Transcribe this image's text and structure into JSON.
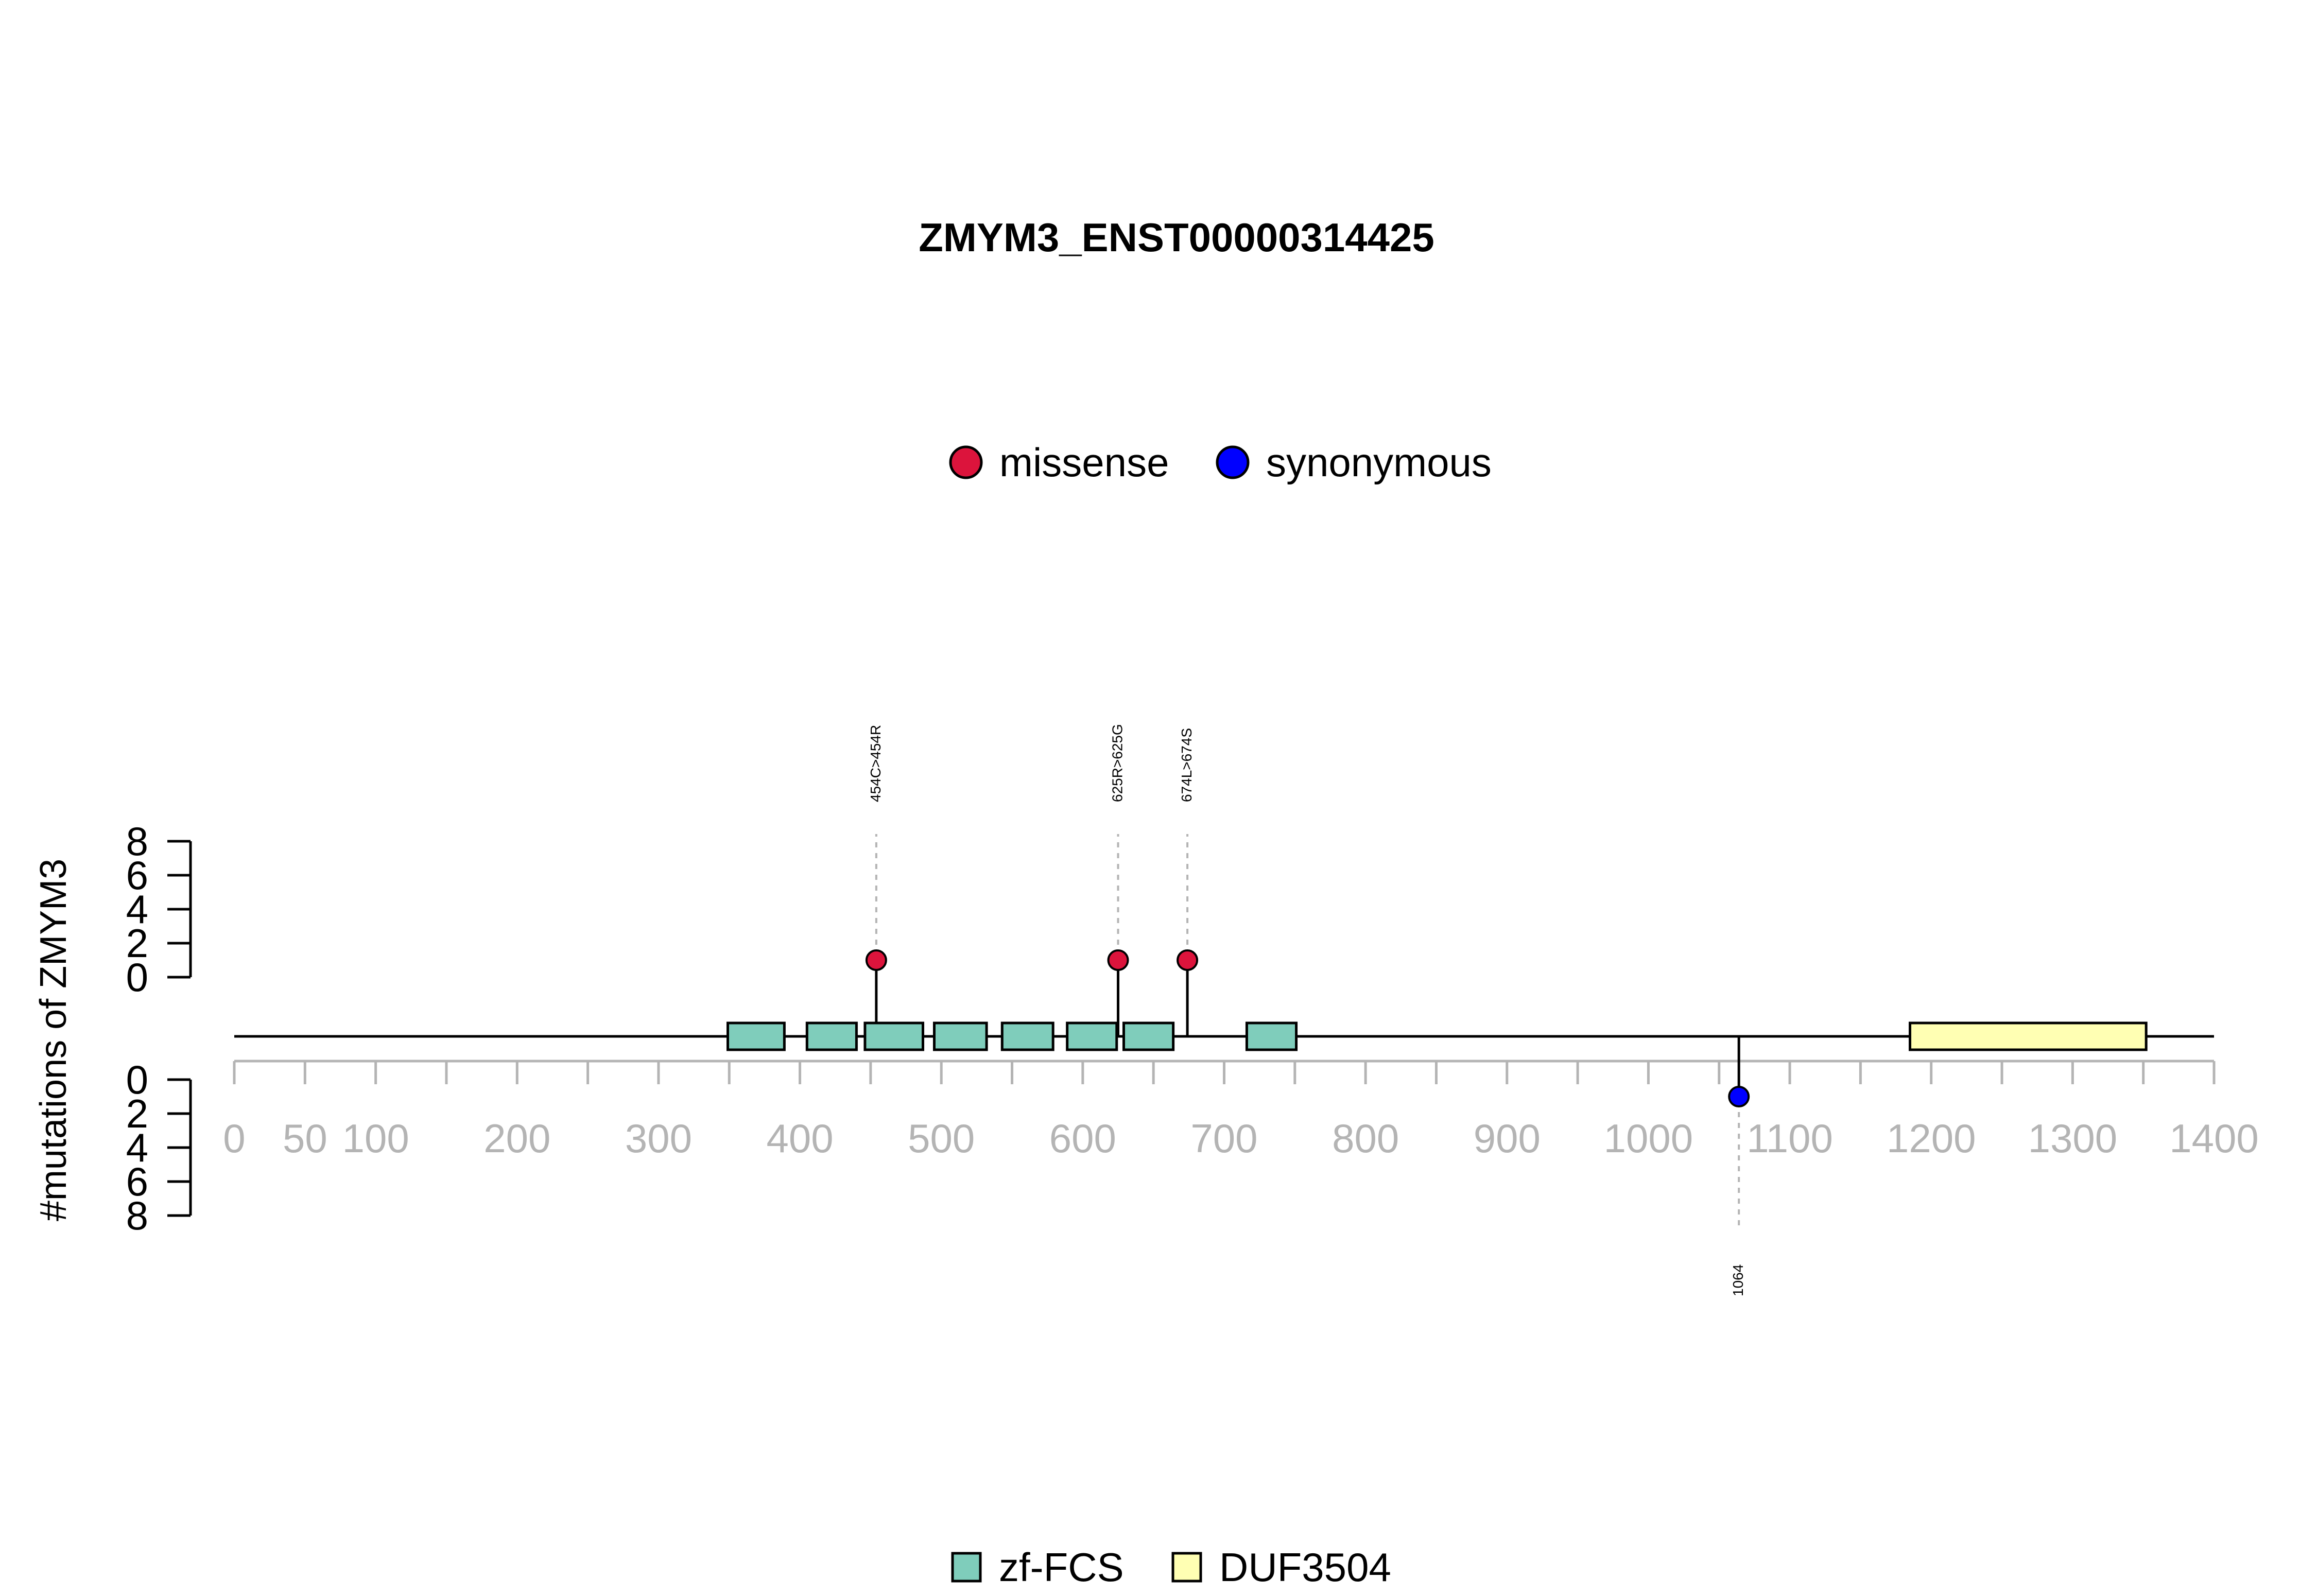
{
  "chart_data": {
    "type": "lollipop",
    "title": "ZMYM3_ENST00000314425",
    "ylabel": "#mutations of ZMYM3",
    "x_range": [
      0,
      1400
    ],
    "x_ticks": [
      0,
      50,
      100,
      200,
      300,
      400,
      500,
      600,
      700,
      800,
      900,
      1000,
      1100,
      1200,
      1300,
      1400
    ],
    "y_range": [
      0,
      8
    ],
    "y_ticks": [
      0,
      2,
      4,
      6,
      8
    ],
    "mutation_legend": [
      {
        "label": "missense",
        "color": "#DC143C"
      },
      {
        "label": "synonymous",
        "color": "#0000FF"
      }
    ],
    "domain_legend": [
      {
        "label": "zf-FCS",
        "color": "#7FCDBB"
      },
      {
        "label": "DUF3504",
        "color": "#FFFFB3"
      }
    ],
    "mutations": [
      {
        "position": 454,
        "count": 1,
        "type": "missense",
        "label": "454C>454R",
        "side": "top"
      },
      {
        "position": 625,
        "count": 1,
        "type": "missense",
        "label": "625R>625G",
        "side": "top"
      },
      {
        "position": 674,
        "count": 1,
        "type": "missense",
        "label": "674L>674S",
        "side": "top"
      },
      {
        "position": 1064,
        "count": 1,
        "type": "synonymous",
        "label": "1064",
        "side": "bottom"
      }
    ],
    "domains": [
      {
        "name": "zf-FCS",
        "start": 349,
        "end": 389
      },
      {
        "name": "zf-FCS",
        "start": 405,
        "end": 440
      },
      {
        "name": "zf-FCS",
        "start": 446,
        "end": 487
      },
      {
        "name": "zf-FCS",
        "start": 495,
        "end": 532
      },
      {
        "name": "zf-FCS",
        "start": 543,
        "end": 579
      },
      {
        "name": "zf-FCS",
        "start": 589,
        "end": 624
      },
      {
        "name": "zf-FCS",
        "start": 629,
        "end": 664
      },
      {
        "name": "zf-FCS",
        "start": 716,
        "end": 751
      },
      {
        "name": "DUF3504",
        "start": 1185,
        "end": 1352
      }
    ]
  }
}
